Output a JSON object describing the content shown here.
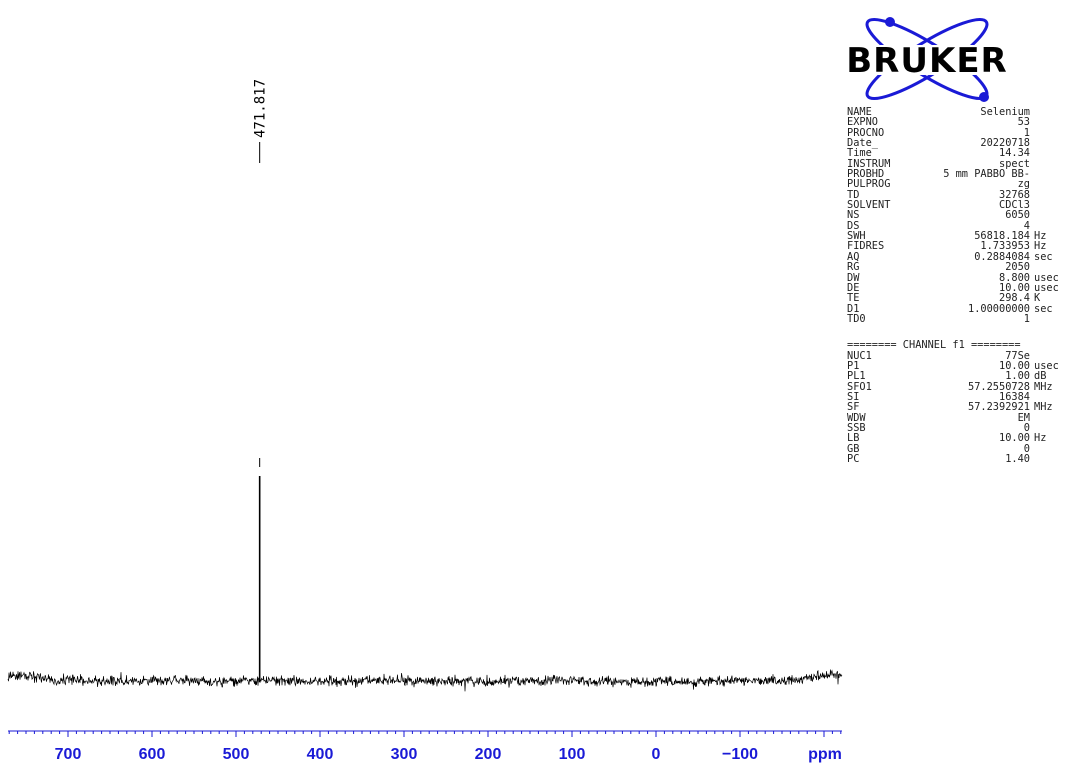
{
  "chart_data": {
    "type": "line",
    "xlabel": "ppm",
    "x_axis_reversed": true,
    "xlim": [
      780,
      -220
    ],
    "xticks": [
      "700",
      "600",
      "500",
      "400",
      "300",
      "200",
      "100",
      "0",
      "−100"
    ],
    "x_tick_values": [
      700,
      600,
      500,
      400,
      300,
      200,
      100,
      0,
      -100
    ],
    "peaks": [
      {
        "x": 471.817,
        "label": "471.817"
      }
    ],
    "series": [
      {
        "description_free": true,
        "baseline_noise": true,
        "peak_x": 471.817
      }
    ]
  },
  "colors": {
    "axis": "#1a1ad6",
    "trace": "#000000"
  },
  "logo": {
    "text": "BRUKER"
  },
  "parameters": [
    {
      "key": "NAME",
      "value": "Selenium",
      "unit": ""
    },
    {
      "key": "EXPNO",
      "value": "53",
      "unit": ""
    },
    {
      "key": "PROCNO",
      "value": "1",
      "unit": ""
    },
    {
      "key": "Date_",
      "value": "20220718",
      "unit": ""
    },
    {
      "key": "Time",
      "value": "14.34",
      "unit": ""
    },
    {
      "key": "INSTRUM",
      "value": "spect",
      "unit": ""
    },
    {
      "key": "PROBHD",
      "value": "5 mm PABBO BB-",
      "unit": ""
    },
    {
      "key": "PULPROG",
      "value": "zg",
      "unit": ""
    },
    {
      "key": "TD",
      "value": "32768",
      "unit": ""
    },
    {
      "key": "SOLVENT",
      "value": "CDCl3",
      "unit": ""
    },
    {
      "key": "NS",
      "value": "6050",
      "unit": ""
    },
    {
      "key": "DS",
      "value": "4",
      "unit": ""
    },
    {
      "key": "SWH",
      "value": "56818.184",
      "unit": "Hz"
    },
    {
      "key": "FIDRES",
      "value": "1.733953",
      "unit": "Hz"
    },
    {
      "key": "AQ",
      "value": "0.2884084",
      "unit": "sec"
    },
    {
      "key": "RG",
      "value": "2050",
      "unit": ""
    },
    {
      "key": "DW",
      "value": "8.800",
      "unit": "usec"
    },
    {
      "key": "DE",
      "value": "10.00",
      "unit": "usec"
    },
    {
      "key": "TE",
      "value": "298.4",
      "unit": "K"
    },
    {
      "key": "D1",
      "value": "1.00000000",
      "unit": "sec"
    },
    {
      "key": "TD0",
      "value": "1",
      "unit": ""
    }
  ],
  "channel_header": "======== CHANNEL f1 ========",
  "channel_parameters": [
    {
      "key": "NUC1",
      "value": "77Se",
      "unit": ""
    },
    {
      "key": "P1",
      "value": "10.00",
      "unit": "usec"
    },
    {
      "key": "PL1",
      "value": "1.00",
      "unit": "dB"
    },
    {
      "key": "SFO1",
      "value": "57.2550728",
      "unit": "MHz"
    },
    {
      "key": "SI",
      "value": "16384",
      "unit": ""
    },
    {
      "key": "SF",
      "value": "57.2392921",
      "unit": "MHz"
    },
    {
      "key": "WDW",
      "value": "EM",
      "unit": ""
    },
    {
      "key": "SSB",
      "value": "0",
      "unit": ""
    },
    {
      "key": "LB",
      "value": "10.00",
      "unit": "Hz"
    },
    {
      "key": "GB",
      "value": "0",
      "unit": ""
    },
    {
      "key": "PC",
      "value": "1.40",
      "unit": ""
    }
  ]
}
